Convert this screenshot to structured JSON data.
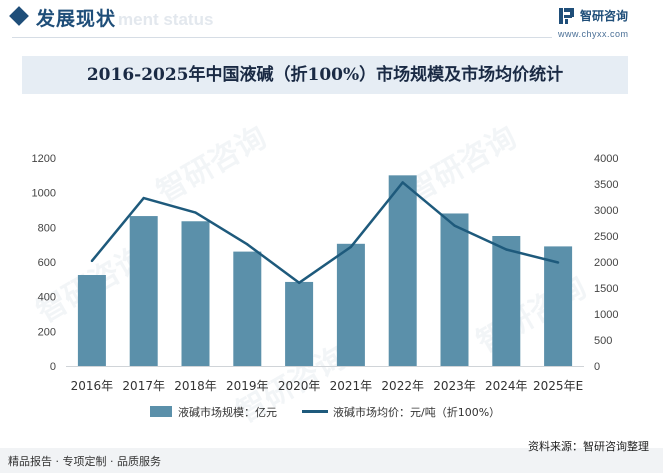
{
  "header": {
    "title": "发展现状",
    "subtitle": "ment status"
  },
  "brand": {
    "name": "智研咨询",
    "url": "www.chyxx.com"
  },
  "watermark": "智研咨询",
  "footer": {
    "left": "精品报告 · 专项定制 · 品质服务",
    "source": "资料来源：智研咨询整理"
  },
  "colors": {
    "bar": "#5b90aa",
    "line": "#1e5a7c",
    "header": "#1f4e79"
  },
  "chart_data": {
    "type": "bar",
    "title": "2016-2025年中国液碱（折100%）市场规模及市场均价统计",
    "categories": [
      "2016年",
      "2017年",
      "2018年",
      "2019年",
      "2020年",
      "2021年",
      "2022年",
      "2023年",
      "2024年",
      "2025年E"
    ],
    "y_left": {
      "ylim": [
        0,
        1200
      ],
      "ticks": [
        0,
        200,
        400,
        600,
        800,
        1000,
        1200
      ]
    },
    "y_right": {
      "ylim": [
        0,
        4000
      ],
      "ticks": [
        0,
        500,
        1000,
        1500,
        2000,
        2500,
        3000,
        3500,
        4000
      ]
    },
    "series": [
      {
        "name": "液碱市场规模：亿元",
        "type": "bar",
        "axis": "left",
        "values": [
          525,
          865,
          835,
          660,
          485,
          705,
          1100,
          880,
          750,
          690
        ]
      },
      {
        "name": "液碱市场均价：元/吨（折100%）",
        "type": "line",
        "axis": "right",
        "values": [
          2020,
          3230,
          2950,
          2340,
          1600,
          2290,
          3530,
          2700,
          2240,
          1990
        ]
      }
    ],
    "legend_position": "bottom",
    "grid": false
  }
}
